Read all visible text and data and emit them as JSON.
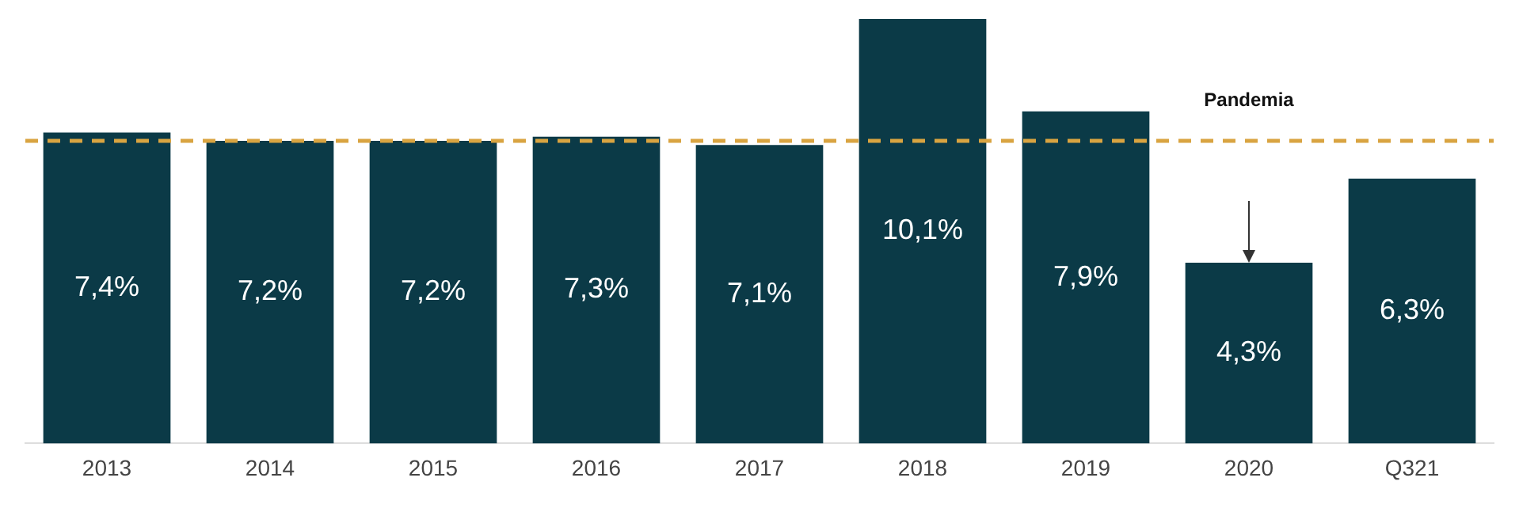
{
  "chart_data": {
    "type": "bar",
    "categories": [
      "2013",
      "2014",
      "2015",
      "2016",
      "2017",
      "2018",
      "2019",
      "2020",
      "Q321"
    ],
    "values": [
      7.4,
      7.2,
      7.2,
      7.3,
      7.1,
      10.1,
      7.9,
      4.3,
      6.3
    ],
    "value_labels": [
      "7,4%",
      "7,2%",
      "7,2%",
      "7,3%",
      "7,1%",
      "10,1%",
      "7,9%",
      "4,3%",
      "6,3%"
    ],
    "color": "#0b3a47",
    "ref_lines": [
      {
        "axis": "y",
        "value": 7.2,
        "color": "#d9a441",
        "line_style": "dashed"
      }
    ],
    "annotations": [
      "Pandemia"
    ],
    "grid": false,
    "legend": false
  }
}
